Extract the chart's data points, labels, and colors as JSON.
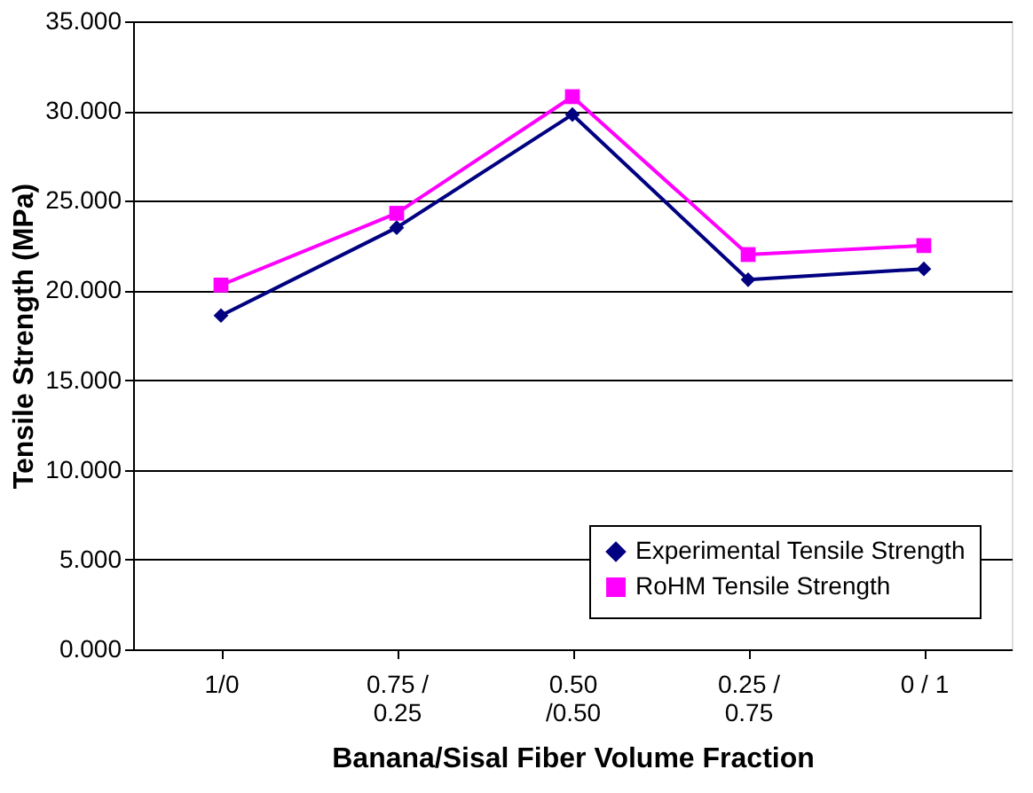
{
  "chart_data": {
    "type": "line",
    "xlabel": "Banana/Sisal Fiber Volume Fraction",
    "ylabel": "Tensile Strength (MPa)",
    "categories": [
      "1/0",
      "0.75 /\n0.25",
      "0.50\n/0.50",
      "0.25 /\n0.75",
      "0 / 1"
    ],
    "series": [
      {
        "name": "Experimental Tensile Strength",
        "color": "#000080",
        "marker": "diamond",
        "values": [
          18.6,
          23.5,
          29.8,
          20.6,
          21.2
        ]
      },
      {
        "name": "RoHM Tensile Strength",
        "color": "#ff00ff",
        "marker": "square",
        "values": [
          20.3,
          24.3,
          30.8,
          22.0,
          22.5
        ]
      }
    ],
    "ylim": [
      0,
      35
    ],
    "yticks": [
      {
        "value": 0,
        "label": "0.000"
      },
      {
        "value": 5,
        "label": "5.000"
      },
      {
        "value": 10,
        "label": "10.000"
      },
      {
        "value": 15,
        "label": "15.000"
      },
      {
        "value": 20,
        "label": "20.000"
      },
      {
        "value": 25,
        "label": "25.000"
      },
      {
        "value": 30,
        "label": "30.000"
      },
      {
        "value": 35,
        "label": "35.000"
      }
    ],
    "grid": "y",
    "legend": "bottom right"
  }
}
